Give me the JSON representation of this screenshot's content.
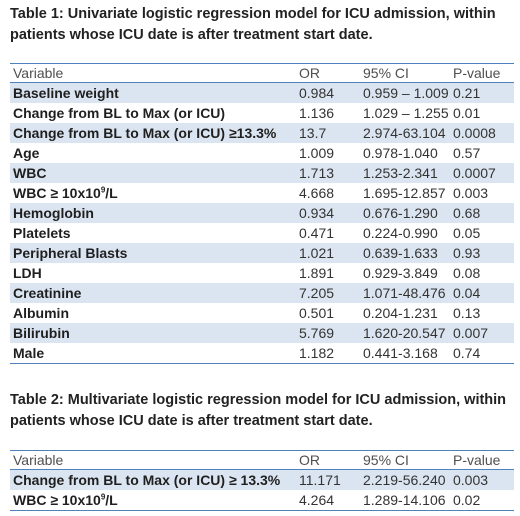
{
  "table1": {
    "title_line1": "Table 1: Univariate logistic regression model for ICU admission, within",
    "title_line2": "patients whose ICU date is after treatment start date.",
    "headers": [
      "Variable",
      "OR",
      "95% CI",
      "P-value"
    ],
    "rows": [
      {
        "variable": "Baseline weight",
        "or": "0.984",
        "ci": "0.959 – 1.009",
        "p": "0.21"
      },
      {
        "variable": "Change from BL to Max (or ICU)",
        "or": "1.136",
        "ci": "1.029 – 1.255",
        "p": "0.01"
      },
      {
        "variable": "Change from BL to Max (or ICU) ≥13.3%",
        "or": "13.7",
        "ci": "2.974-63.104",
        "p": "0.0008"
      },
      {
        "variable": "Age",
        "or": "1.009",
        "ci": "0.978-1.040",
        "p": "0.57"
      },
      {
        "variable": "WBC",
        "or": "1.713",
        "ci": "1.253-2.341",
        "p": "0.0007"
      },
      {
        "variable": "WBC ≥ 10x10",
        "sup": "9",
        "variable_suffix": "/L",
        "or": "4.668",
        "ci": "1.695-12.857",
        "p": "0.003"
      },
      {
        "variable": "Hemoglobin",
        "or": "0.934",
        "ci": "0.676-1.290",
        "p": "0.68"
      },
      {
        "variable": "Platelets",
        "or": "0.471",
        "ci": "0.224-0.990",
        "p": "0.05"
      },
      {
        "variable": "Peripheral Blasts",
        "or": "1.021",
        "ci": "0.639-1.633",
        "p": "0.93"
      },
      {
        "variable": "LDH",
        "or": "1.891",
        "ci": "0.929-3.849",
        "p": "0.08"
      },
      {
        "variable": "Creatinine",
        "or": "7.205",
        "ci": "1.071-48.476",
        "p": "0.04"
      },
      {
        "variable": "Albumin",
        "or": "0.501",
        "ci": "0.204-1.231",
        "p": "0.13"
      },
      {
        "variable": "Bilirubin",
        "or": "5.769",
        "ci": "1.620-20.547",
        "p": "0.007"
      },
      {
        "variable": "Male",
        "or": "1.182",
        "ci": "0.441-3.168",
        "p": "0.74"
      }
    ]
  },
  "table2": {
    "title_line1": "Table 2: Multivariate logistic regression model for ICU admission, within",
    "title_line2": "patients whose ICU date is after treatment start date.",
    "headers": [
      "Variable",
      "OR",
      "95% CI",
      "P-value"
    ],
    "rows": [
      {
        "variable": "Change from BL to Max (or ICU) ≥ 13.3%",
        "or": "11.171",
        "ci": "2.219-56.240",
        "p": "0.003"
      },
      {
        "variable": "WBC ≥ 10x10",
        "sup": "9",
        "variable_suffix": "/L",
        "or": "4.264",
        "ci": "1.289-14.106",
        "p": "0.02"
      }
    ]
  }
}
